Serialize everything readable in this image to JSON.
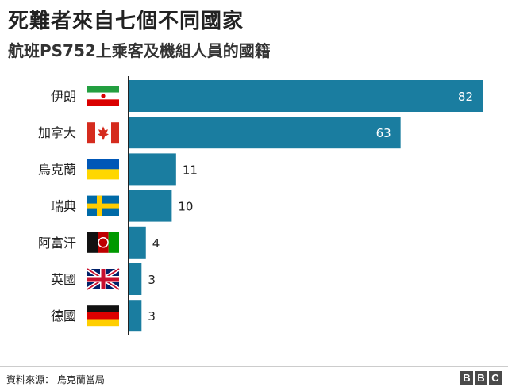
{
  "title": "死難者來自七個不同國家",
  "subtitle": "航班PS752上乘客及機組人員的國籍",
  "chart_data": {
    "type": "bar",
    "orientation": "horizontal",
    "categories": [
      "伊朗",
      "加拿大",
      "烏克蘭",
      "瑞典",
      "阿富汗",
      "英國",
      "德國"
    ],
    "values": [
      82,
      63,
      11,
      10,
      4,
      3,
      3
    ],
    "data_labels": [
      "82",
      "63",
      "11",
      "10",
      "4",
      "3",
      "3"
    ],
    "xlim": [
      0,
      82
    ],
    "grid": false,
    "bar_color": "#1a7da0",
    "flags": [
      "iran-flag",
      "canada-flag",
      "ukraine-flag",
      "sweden-flag",
      "afghanistan-flag",
      "uk-flag",
      "germany-flag"
    ]
  },
  "footer": {
    "source": "資料來源： 烏克蘭當局",
    "logo": [
      "B",
      "B",
      "C"
    ]
  }
}
